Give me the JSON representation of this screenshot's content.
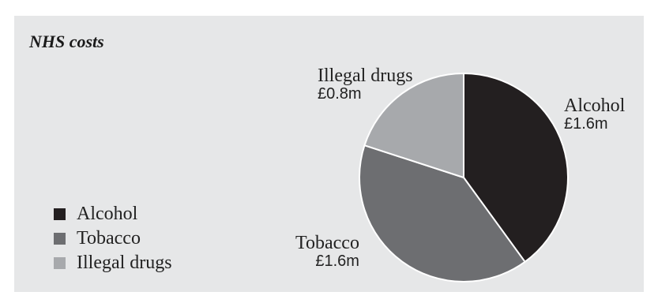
{
  "chart_data": {
    "type": "pie",
    "title": "NHS costs",
    "categories": [
      "Alcohol",
      "Tobacco",
      "Illegal drugs"
    ],
    "values": [
      1.6,
      1.6,
      0.8
    ],
    "value_labels": [
      "£1.6m",
      "£1.6m",
      "£0.8m"
    ],
    "colors": [
      "#231f20",
      "#6d6e71",
      "#a7a9ac"
    ],
    "legend": {
      "position": "left",
      "items": [
        "Alcohol",
        "Tobacco",
        "Illegal drugs"
      ]
    }
  }
}
